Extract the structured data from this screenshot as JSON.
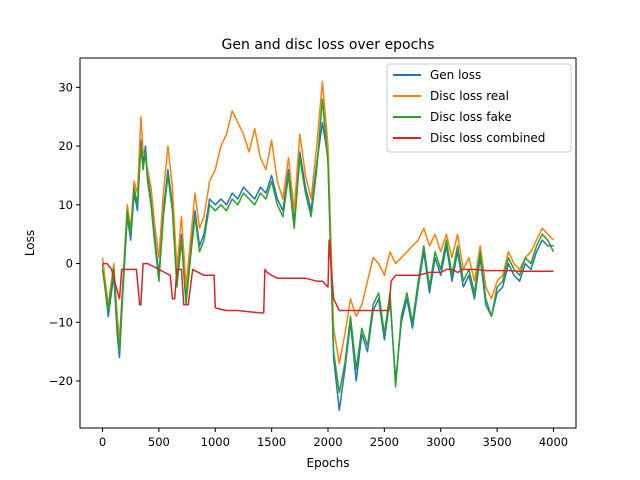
{
  "chart_data": {
    "type": "line",
    "title": "Gen and disc loss over epochs",
    "xlabel": "Epochs",
    "ylabel": "Loss",
    "xlim": [
      -200,
      4200
    ],
    "ylim": [
      -28,
      35
    ],
    "xticks": [
      0,
      500,
      1000,
      1500,
      2000,
      2500,
      3000,
      3500,
      4000
    ],
    "yticks": [
      -20,
      -10,
      0,
      10,
      20,
      30
    ],
    "grid": false,
    "legend_position": "upper right",
    "series": [
      {
        "name": "Gen loss",
        "color": "#1f77b4",
        "x": [
          0,
          50,
          100,
          130,
          150,
          180,
          220,
          250,
          280,
          310,
          340,
          360,
          380,
          400,
          430,
          460,
          500,
          540,
          580,
          620,
          660,
          700,
          740,
          780,
          820,
          860,
          900,
          950,
          1000,
          1050,
          1100,
          1150,
          1200,
          1250,
          1300,
          1350,
          1400,
          1450,
          1500,
          1550,
          1600,
          1650,
          1700,
          1750,
          1800,
          1850,
          1900,
          1950,
          2000,
          2050,
          2100,
          2150,
          2200,
          2250,
          2300,
          2350,
          2400,
          2450,
          2500,
          2550,
          2600,
          2650,
          2700,
          2750,
          2800,
          2850,
          2900,
          2950,
          3000,
          3050,
          3100,
          3150,
          3200,
          3250,
          3300,
          3350,
          3400,
          3450,
          3500,
          3550,
          3600,
          3650,
          3700,
          3750,
          3800,
          3850,
          3900,
          3950,
          4000
        ],
        "y": [
          0,
          -9,
          -2,
          -12,
          -16,
          -5,
          8,
          4,
          12,
          9,
          21,
          17,
          20,
          15,
          11,
          5,
          -2,
          9,
          16,
          10,
          -3,
          5,
          -6,
          2,
          9,
          3,
          5,
          11,
          10,
          11,
          10,
          12,
          11,
          13,
          12,
          11,
          13,
          12,
          15,
          11,
          9,
          16,
          7,
          19,
          13,
          9,
          17,
          24,
          18,
          -16,
          -25,
          -18,
          -10,
          -20,
          -12,
          -15,
          -8,
          -6,
          -13,
          -6,
          -20,
          -10,
          -6,
          -11,
          -4,
          2,
          -5,
          1,
          -2,
          3,
          -3,
          2,
          -4,
          -2,
          -6,
          1,
          -7,
          -9,
          -5,
          -4,
          0,
          -2,
          -3,
          0,
          -1,
          2,
          4,
          3,
          3
        ]
      },
      {
        "name": "Disc loss real",
        "color": "#ff7f0e",
        "x": [
          0,
          50,
          100,
          130,
          150,
          180,
          220,
          250,
          280,
          310,
          340,
          360,
          380,
          400,
          430,
          460,
          500,
          540,
          580,
          620,
          660,
          700,
          740,
          780,
          820,
          860,
          900,
          950,
          1000,
          1050,
          1100,
          1150,
          1200,
          1250,
          1300,
          1350,
          1400,
          1450,
          1500,
          1550,
          1600,
          1650,
          1700,
          1750,
          1800,
          1850,
          1900,
          1950,
          2000,
          2050,
          2100,
          2150,
          2200,
          2250,
          2300,
          2350,
          2400,
          2450,
          2500,
          2550,
          2600,
          2650,
          2700,
          2750,
          2800,
          2850,
          2900,
          2950,
          3000,
          3050,
          3100,
          3150,
          3200,
          3250,
          3300,
          3350,
          3400,
          3450,
          3500,
          3550,
          3600,
          3650,
          3700,
          3750,
          3800,
          3850,
          3900,
          3950,
          4000
        ],
        "y": [
          1,
          -7,
          0,
          -9,
          -13,
          -3,
          10,
          6,
          14,
          12,
          25,
          19,
          18,
          16,
          13,
          7,
          1,
          12,
          20,
          13,
          -1,
          8,
          -4,
          4,
          12,
          6,
          8,
          14,
          16,
          20,
          22,
          26,
          24,
          22,
          19,
          23,
          18,
          16,
          21,
          14,
          11,
          18,
          9,
          22,
          15,
          11,
          20,
          31,
          20,
          -11,
          -17,
          -12,
          -6,
          -9,
          -7,
          -3,
          1,
          0,
          -2,
          2,
          0,
          1,
          2,
          3,
          4,
          6,
          3,
          5,
          2,
          5,
          1,
          5,
          -1,
          1,
          -3,
          3,
          -4,
          -6,
          -3,
          -2,
          2,
          0,
          -1,
          1,
          2,
          4,
          6,
          5,
          4
        ]
      },
      {
        "name": "Disc loss fake",
        "color": "#2ca02c",
        "x": [
          0,
          50,
          100,
          130,
          150,
          180,
          220,
          250,
          280,
          310,
          340,
          360,
          380,
          400,
          430,
          460,
          500,
          540,
          580,
          620,
          660,
          700,
          740,
          780,
          820,
          860,
          900,
          950,
          1000,
          1050,
          1100,
          1150,
          1200,
          1250,
          1300,
          1350,
          1400,
          1450,
          1500,
          1550,
          1600,
          1650,
          1700,
          1750,
          1800,
          1850,
          1900,
          1950,
          2000,
          2050,
          2100,
          2150,
          2200,
          2250,
          2300,
          2350,
          2400,
          2450,
          2500,
          2550,
          2600,
          2650,
          2700,
          2750,
          2800,
          2850,
          2900,
          2950,
          3000,
          3050,
          3100,
          3150,
          3200,
          3250,
          3300,
          3350,
          3400,
          3450,
          3500,
          3550,
          3600,
          3650,
          3700,
          3750,
          3800,
          3850,
          3900,
          3950,
          4000
        ],
        "y": [
          -1,
          -8,
          -1,
          -11,
          -15,
          -4,
          9,
          5,
          13,
          10,
          20,
          16,
          19,
          14,
          10,
          4,
          -3,
          8,
          15,
          9,
          -4,
          4,
          -7,
          1,
          8,
          2,
          4,
          10,
          9,
          10,
          9,
          11,
          10,
          12,
          11,
          10,
          12,
          11,
          14,
          10,
          8,
          15,
          6,
          18,
          12,
          8,
          16,
          28,
          17,
          -15,
          -22,
          -17,
          -9,
          -18,
          -11,
          -14,
          -7,
          -5,
          -12,
          -5,
          -21,
          -9,
          -5,
          -10,
          -3,
          3,
          -4,
          2,
          -1,
          4,
          -2,
          3,
          -3,
          -1,
          -5,
          2,
          -6,
          -9,
          -4,
          -3,
          1,
          -1,
          -2,
          1,
          0,
          3,
          5,
          4,
          2
        ]
      },
      {
        "name": "Disc loss combined",
        "color": "#d62728",
        "x": [
          0,
          40,
          80,
          120,
          150,
          170,
          200,
          250,
          300,
          330,
          340,
          360,
          380,
          400,
          450,
          500,
          550,
          600,
          620,
          640,
          660,
          700,
          720,
          760,
          800,
          850,
          900,
          950,
          990,
          1000,
          1050,
          1100,
          1200,
          1300,
          1400,
          1430,
          1440,
          1460,
          1500,
          1550,
          1600,
          1700,
          1800,
          1900,
          1950,
          2000,
          2010,
          2050,
          2100,
          2150,
          2200,
          2300,
          2400,
          2450,
          2500,
          2540,
          2560,
          2600,
          2700,
          2800,
          2900,
          3000,
          3050,
          3100,
          3150,
          3200,
          3300,
          3400,
          3500,
          3600,
          3700,
          3800,
          3900,
          4000
        ],
        "y": [
          0,
          0,
          -1,
          -4,
          -6,
          -1,
          -1,
          -1,
          -1,
          -7,
          -7,
          0,
          0,
          0,
          -0.5,
          -1,
          -1.5,
          -2,
          -6,
          -6,
          -1,
          -1,
          -7,
          -7,
          -1,
          -1.5,
          -2,
          -2,
          -2,
          -7.5,
          -7.8,
          -8,
          -8,
          -8.2,
          -8.4,
          -8.4,
          -1,
          -1.5,
          -2,
          -2.5,
          -2.5,
          -2.5,
          -2.5,
          -3,
          -3,
          -4,
          4,
          -6,
          -8,
          -8,
          -8,
          -8,
          -8,
          -8,
          -8,
          -8,
          -3,
          -2,
          -2,
          -2,
          -1.5,
          -1.5,
          -1,
          -1,
          -1.5,
          -1,
          -1,
          -1.2,
          -1.2,
          -1.2,
          -1.3,
          -1.3,
          -1.3,
          -1.3
        ]
      }
    ]
  }
}
